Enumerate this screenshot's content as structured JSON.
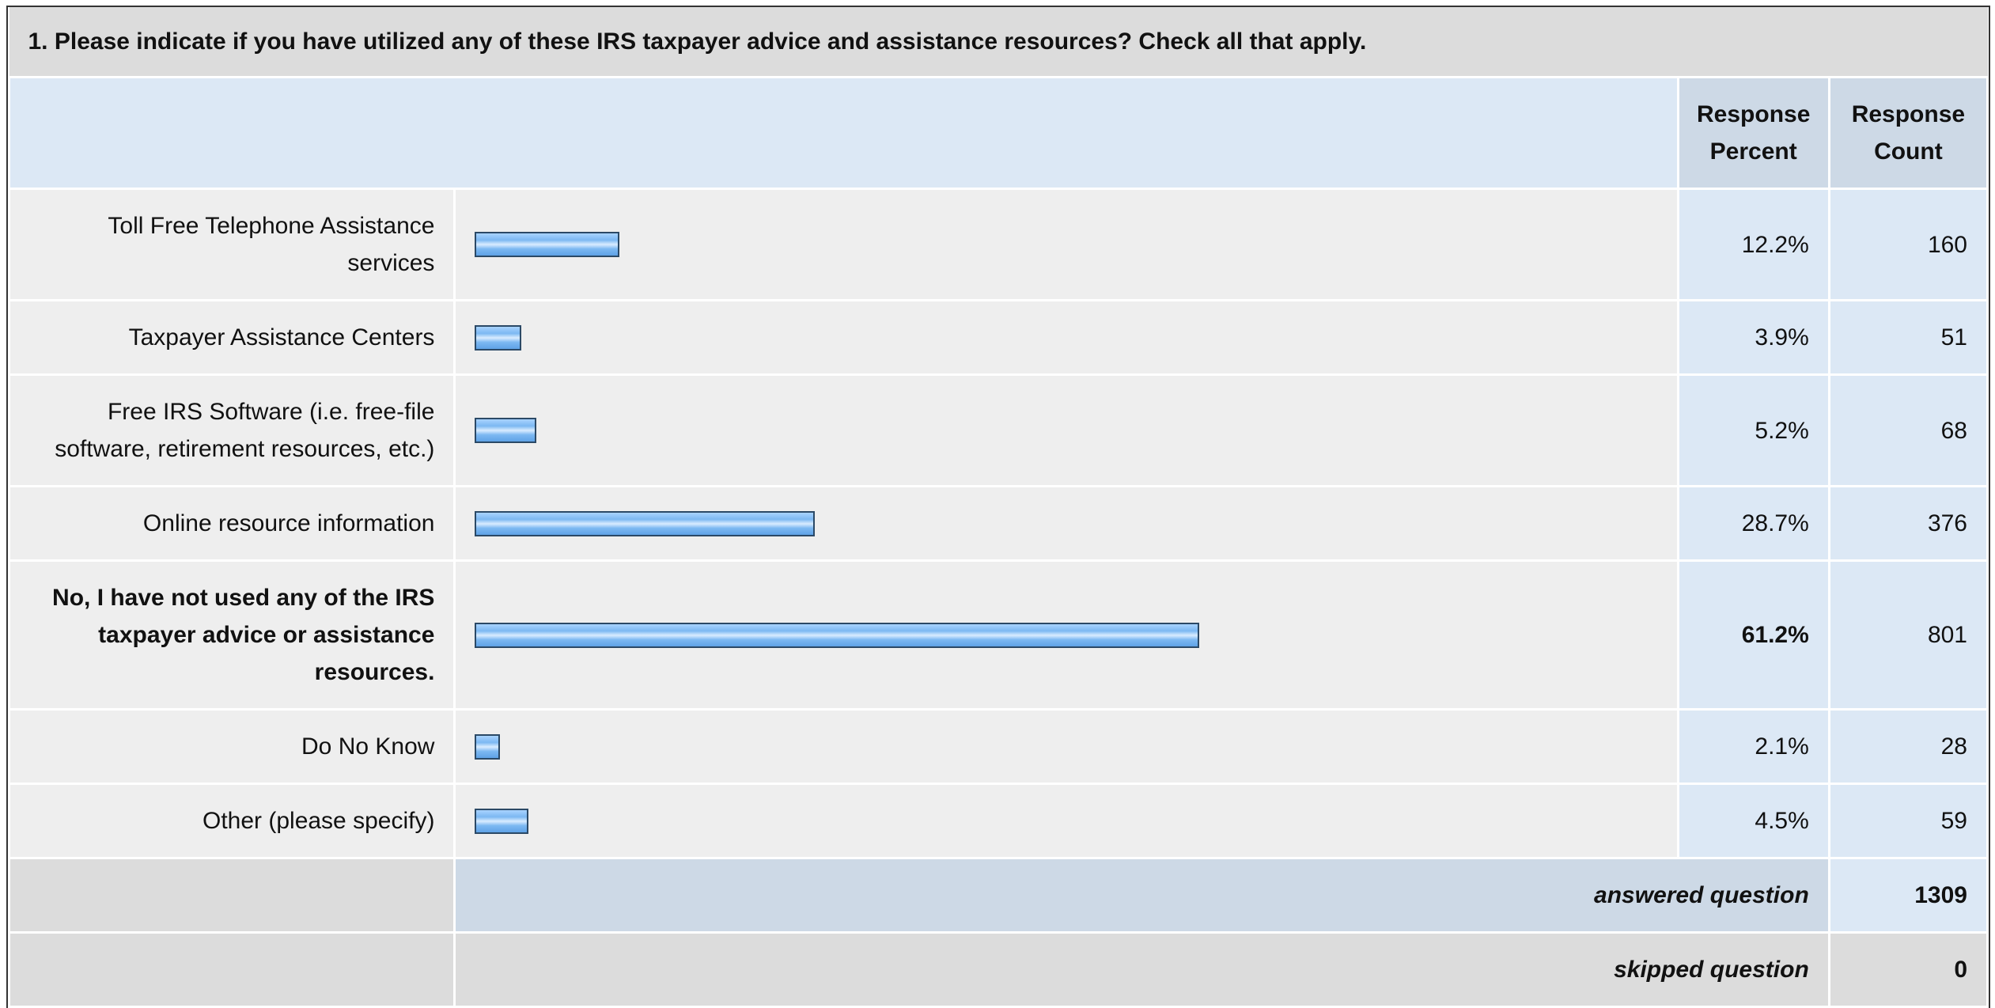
{
  "table": {
    "title": "1. Please indicate if you have utilized any of these IRS taxpayer advice and assistance resources? Check all that apply.",
    "columns": [
      "Response Percent",
      "Response Count"
    ],
    "rows": [
      {
        "label": "Toll Free Telephone Assistance services",
        "percent": 12.2,
        "percent_label": "12.2%",
        "count": 160
      },
      {
        "label": "Taxpayer Assistance Centers",
        "percent": 3.9,
        "percent_label": "3.9%",
        "count": 51
      },
      {
        "label": "Free IRS Software (i.e. free-file software, retirement resources, etc.)",
        "percent": 5.2,
        "percent_label": "5.2%",
        "count": 68
      },
      {
        "label": "Online resource information",
        "percent": 28.7,
        "percent_label": "28.7%",
        "count": 376
      },
      {
        "label": "No, I have not used any of the IRS taxpayer advice or assistance resources.",
        "percent": 61.2,
        "percent_label": "61.2%",
        "count": 801,
        "bold": true
      },
      {
        "label": "Do No Know",
        "percent": 2.1,
        "percent_label": "2.1%",
        "count": 28
      },
      {
        "label": "Other (please specify)",
        "percent": 4.5,
        "percent_label": "4.5%",
        "count": 59
      }
    ],
    "answered": {
      "label": "answered question",
      "value": 1309
    },
    "skipped": {
      "label": "skipped question",
      "value": 0
    }
  }
}
